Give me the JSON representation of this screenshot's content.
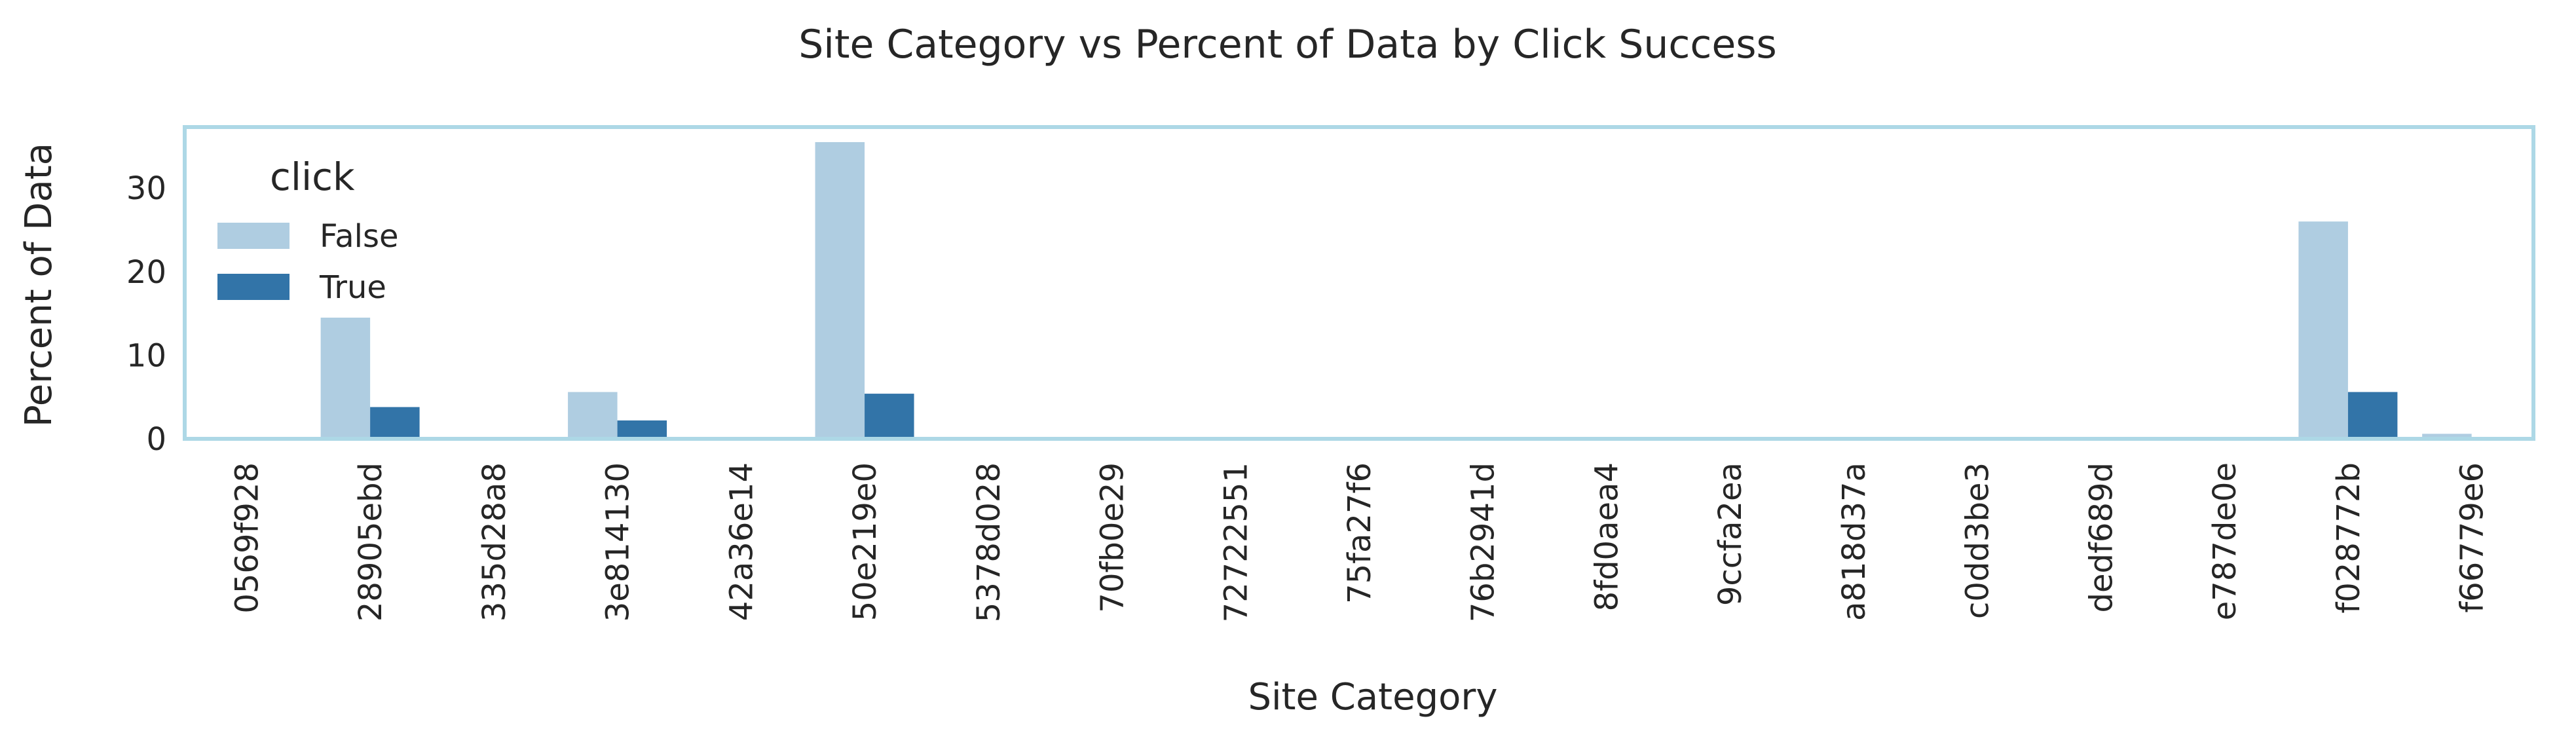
{
  "chart_data": {
    "type": "bar",
    "title": "Site Category vs Percent of Data by Click Success",
    "xlabel": "Site Category",
    "ylabel": "Percent of Data",
    "ylim": [
      0,
      37.3
    ],
    "yticks": [
      0,
      10,
      20,
      30
    ],
    "grid": false,
    "legend": {
      "title": "click",
      "placement": "top-left"
    },
    "categories": [
      "0569f928",
      "28905ebd",
      "335d28a8",
      "3e814130",
      "42a36e14",
      "50e219e0",
      "5378d028",
      "70fb0e29",
      "72722551",
      "75fa27f6",
      "76b2941d",
      "8fd0aea4",
      "9ccfa2ea",
      "a818d37a",
      "c0dd3be3",
      "dedf689d",
      "e787de0e",
      "f028772b",
      "f66779e6"
    ],
    "series": [
      {
        "name": "False",
        "color": "#afcde1",
        "values": [
          0.05,
          14.5,
          0.1,
          5.6,
          0.05,
          35.5,
          0.0,
          0.05,
          0.05,
          0.05,
          0.05,
          0.05,
          0.05,
          0.05,
          0.05,
          0.05,
          0.05,
          26.0,
          0.6
        ]
      },
      {
        "name": "True",
        "color": "#3274a8",
        "values": [
          0.0,
          3.8,
          0.02,
          2.2,
          0.02,
          5.4,
          0.0,
          0.01,
          0.01,
          0.01,
          0.01,
          0.01,
          0.01,
          0.01,
          0.01,
          0.01,
          0.01,
          5.6,
          0.1
        ]
      }
    ],
    "frame_color": "#add8e6"
  }
}
